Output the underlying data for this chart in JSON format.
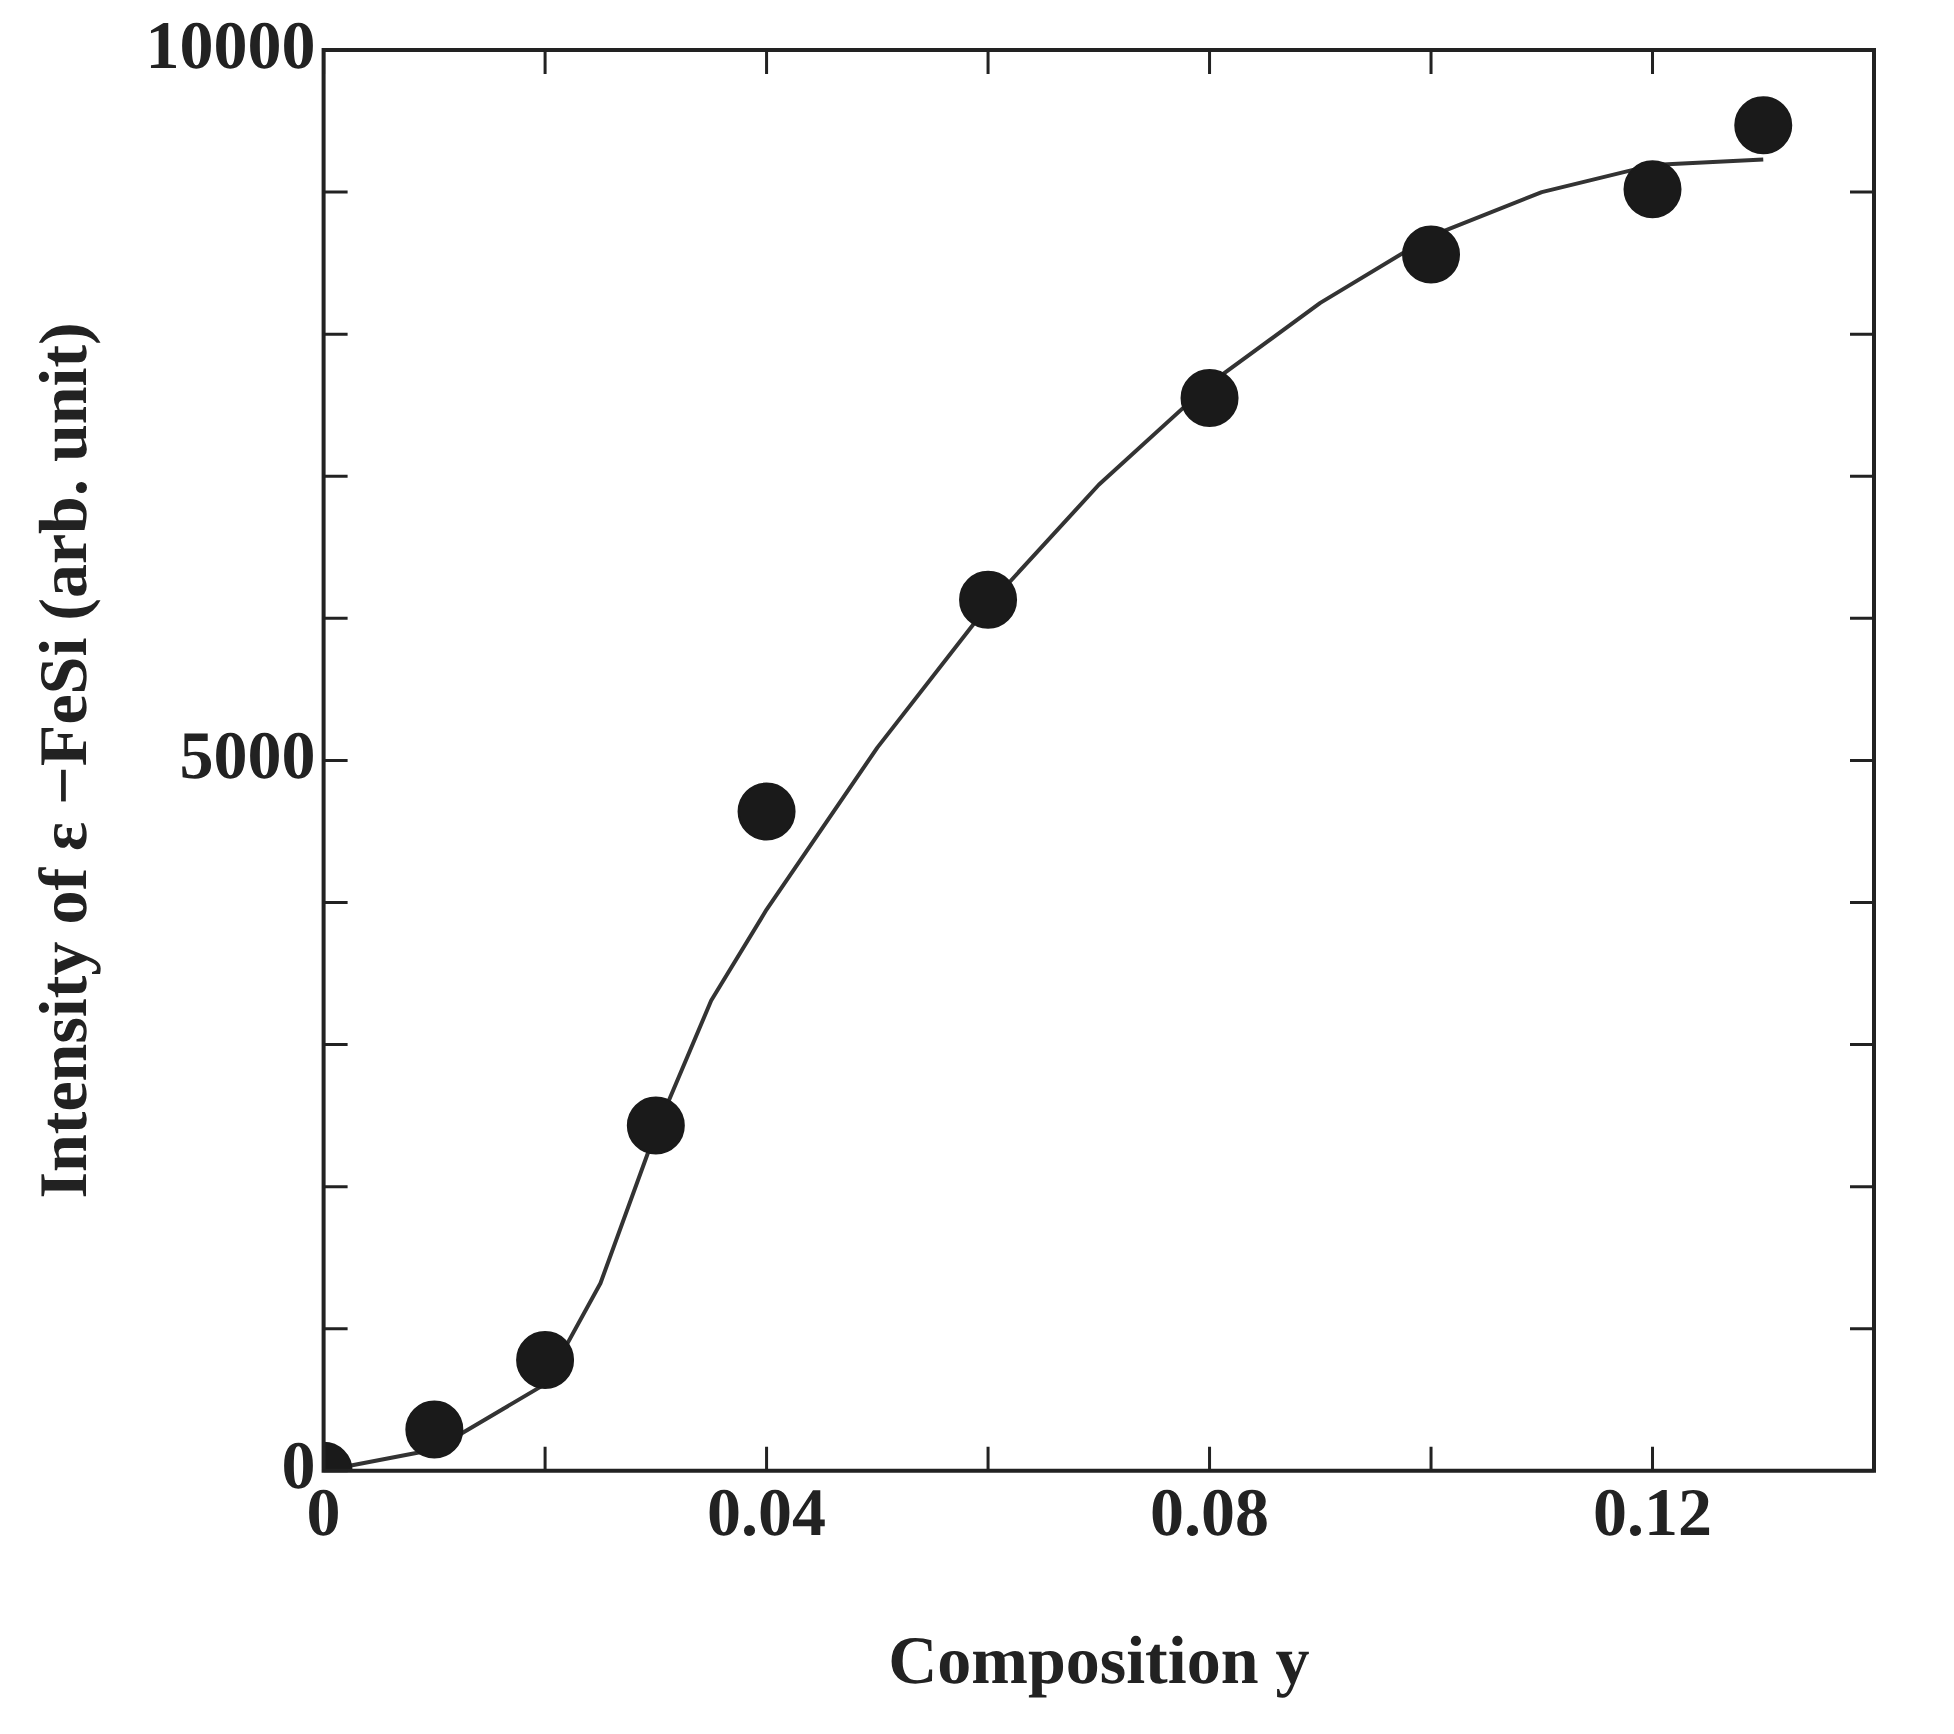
{
  "chart_data": {
    "type": "scatter",
    "xlabel": "Composition y",
    "ylabel": "Intensity of ε −FeSi (arb. unit)",
    "xlim": [
      0,
      0.14
    ],
    "ylim": [
      0,
      10000
    ],
    "xticks": [
      0,
      {
        "value": 0.02,
        "label": null
      },
      0.04,
      {
        "value": 0.06,
        "label": null
      },
      0.08,
      {
        "value": 0.1,
        "label": null
      },
      0.12
    ],
    "yticks": [
      0,
      {
        "value": 1000,
        "label": null
      },
      {
        "value": 2000,
        "label": null
      },
      {
        "value": 3000,
        "label": null
      },
      {
        "value": 4000,
        "label": null
      },
      5000,
      {
        "value": 6000,
        "label": null
      },
      {
        "value": 7000,
        "label": null
      },
      {
        "value": 8000,
        "label": null
      },
      {
        "value": 9000,
        "label": null
      },
      10000
    ],
    "grid": false,
    "legend": false,
    "marker": "circle",
    "series": [
      {
        "type": "scatter",
        "color": "#1a1a1a",
        "x": [
          0,
          0.01,
          0.02,
          0.03,
          0.04,
          0.06,
          0.08,
          0.1,
          0.12,
          0.13
        ],
        "values": [
          0,
          290,
          780,
          2430,
          4640,
          6130,
          7550,
          8560,
          9020,
          9470
        ]
      },
      {
        "type": "line",
        "color": "#333333",
        "marker": "none",
        "line_style": "solid",
        "x": [
          0,
          0.01,
          0.02,
          0.025,
          0.03,
          0.035,
          0.04,
          0.05,
          0.06,
          0.07,
          0.08,
          0.09,
          0.1,
          0.11,
          0.12,
          0.13
        ],
        "values": [
          0,
          150,
          610,
          1320,
          2390,
          3310,
          3950,
          5090,
          6090,
          6940,
          7650,
          8220,
          8690,
          9000,
          9190,
          9230
        ]
      }
    ]
  }
}
